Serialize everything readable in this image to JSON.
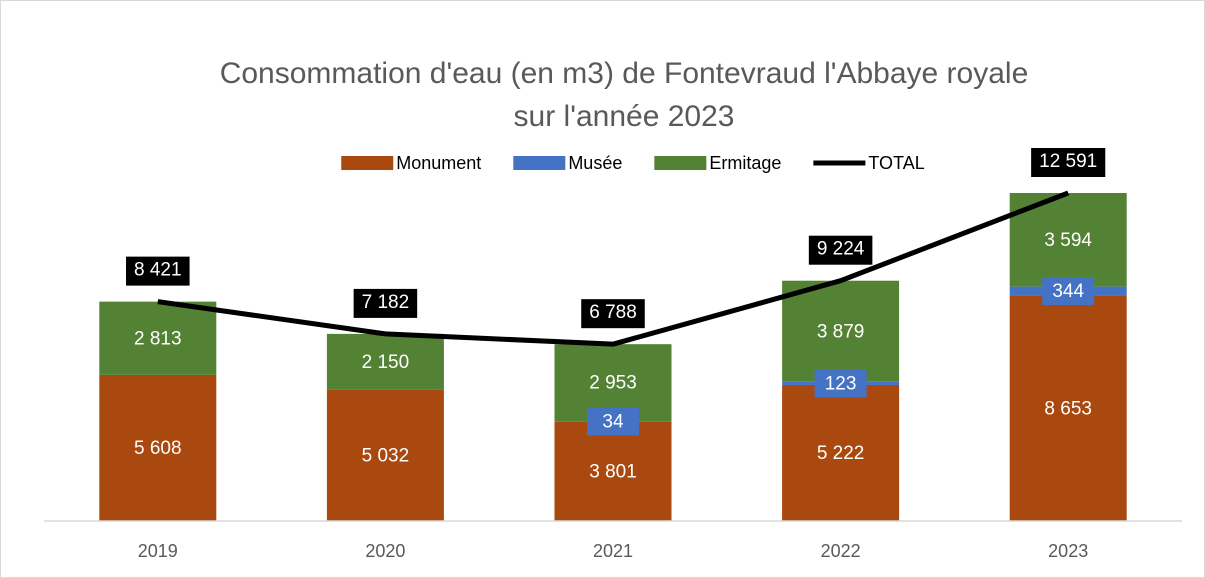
{
  "chart_data": {
    "type": "bar",
    "stacked": true,
    "title": [
      "Consommation d'eau (en m3) de Fontevraud l'Abbaye royale",
      "sur l'année 2023"
    ],
    "categories": [
      "2019",
      "2020",
      "2021",
      "2022",
      "2023"
    ],
    "series": [
      {
        "name": "Monument",
        "color": "#a9490f",
        "values": [
          5608,
          5032,
          3801,
          5222,
          8653
        ],
        "value_labels": [
          "5 608",
          "5 032",
          "3 801",
          "5 222",
          "8 653"
        ]
      },
      {
        "name": "Musée",
        "color": "#4472c4",
        "values": [
          null,
          null,
          34,
          123,
          344
        ],
        "value_labels": [
          null,
          null,
          "34",
          "123",
          "344"
        ]
      },
      {
        "name": "Ermitage",
        "color": "#548235",
        "values": [
          2813,
          2150,
          2953,
          3879,
          3594
        ],
        "value_labels": [
          "2 813",
          "2 150",
          "2 953",
          "3 879",
          "3 594"
        ]
      },
      {
        "name": "TOTAL",
        "type": "line",
        "color": "#000000",
        "values": [
          8421,
          7182,
          6788,
          9224,
          12591
        ],
        "value_labels": [
          "8 421",
          "7 182",
          "6 788",
          "9 224",
          "12 591"
        ]
      }
    ],
    "legend": "top"
  }
}
